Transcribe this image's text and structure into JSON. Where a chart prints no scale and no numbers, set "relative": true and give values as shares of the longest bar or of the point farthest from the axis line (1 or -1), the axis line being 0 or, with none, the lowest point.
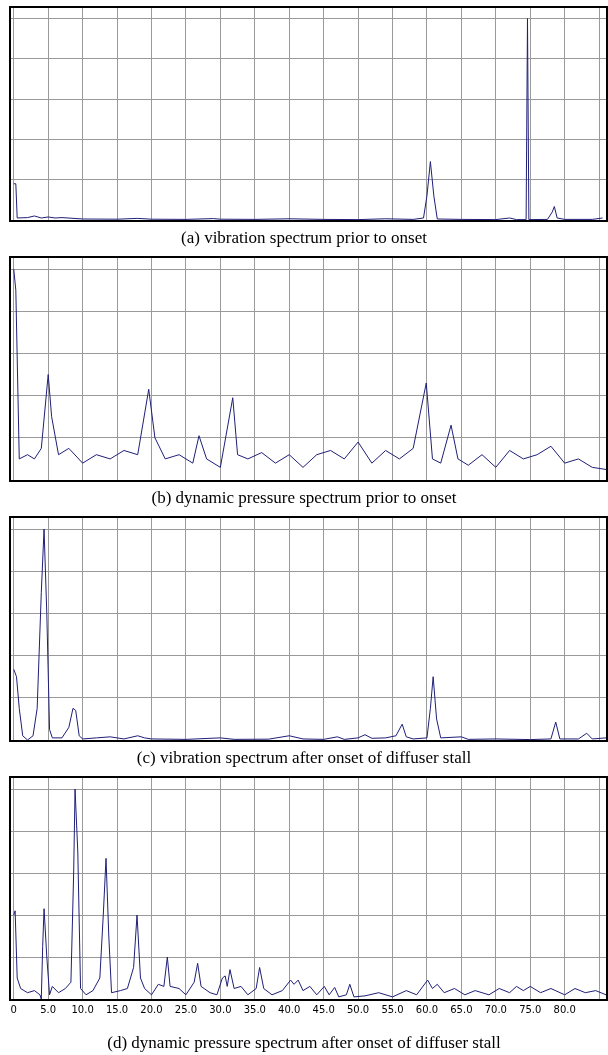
{
  "chart_data": [
    {
      "type": "line",
      "title": "(a) vibration spectrum prior to onset",
      "relative": true,
      "grid": true,
      "tick_labels": false,
      "xlim": [
        -0.4,
        86
      ],
      "xticks": [
        0,
        5,
        10,
        15,
        20,
        25,
        30,
        35,
        40,
        45,
        50,
        55,
        60,
        65,
        70,
        75,
        80,
        85
      ],
      "series": [
        {
          "color": "#1f1f78",
          "x": [
            0,
            0.3,
            0.5,
            2,
            3,
            4,
            5,
            6,
            7,
            10,
            15,
            18,
            20,
            25,
            29,
            30,
            35,
            40,
            45,
            50,
            54,
            58,
            59.5,
            60,
            60.5,
            61,
            61.5,
            65,
            70,
            72,
            73,
            74.4,
            74.6,
            74.8,
            77.5,
            78.2,
            78.5,
            78.9,
            80,
            84,
            85.5
          ],
          "values": [
            0.18,
            0.18,
            0.01,
            0.012,
            0.02,
            0.01,
            0.015,
            0.01,
            0.012,
            0.005,
            0.004,
            0.008,
            0.004,
            0.003,
            0.007,
            0.004,
            0.003,
            0.006,
            0.003,
            0.002,
            0.006,
            0.003,
            0.01,
            0.12,
            0.29,
            0.12,
            0.005,
            0.003,
            0.002,
            0.01,
            0.002,
            0.002,
            1,
            0.002,
            0.003,
            0.04,
            0.067,
            0.01,
            0.003,
            0.003,
            0.01
          ]
        }
      ]
    },
    {
      "type": "line",
      "title": "(b) dynamic pressure spectrum prior to onset",
      "relative": true,
      "grid": true,
      "tick_labels": false,
      "xlim": [
        -0.4,
        86
      ],
      "xticks": [
        0,
        5,
        10,
        15,
        20,
        25,
        30,
        35,
        40,
        45,
        50,
        55,
        60,
        65,
        70,
        75,
        80,
        85
      ],
      "series": [
        {
          "color": "#1f1f78",
          "x": [
            0,
            0.3,
            0.8,
            2,
            3,
            4,
            5,
            5.5,
            6.5,
            8,
            10,
            12,
            14,
            16,
            18,
            19.6,
            20.5,
            22,
            24,
            26,
            26.9,
            28,
            30,
            31.8,
            32.5,
            34,
            36,
            38,
            40,
            42,
            44,
            46,
            48,
            50,
            52,
            54,
            56,
            58,
            59.9,
            60.8,
            62,
            63.5,
            64.5,
            66,
            68,
            70,
            72,
            74,
            76,
            78,
            80,
            82,
            84,
            86
          ],
          "values": [
            1,
            0.9,
            0.1,
            0.12,
            0.1,
            0.15,
            0.5,
            0.3,
            0.12,
            0.15,
            0.08,
            0.12,
            0.1,
            0.14,
            0.12,
            0.43,
            0.2,
            0.1,
            0.12,
            0.08,
            0.21,
            0.1,
            0.06,
            0.39,
            0.12,
            0.1,
            0.13,
            0.08,
            0.12,
            0.06,
            0.12,
            0.14,
            0.1,
            0.18,
            0.08,
            0.14,
            0.1,
            0.15,
            0.46,
            0.1,
            0.08,
            0.26,
            0.1,
            0.07,
            0.12,
            0.06,
            0.14,
            0.1,
            0.12,
            0.16,
            0.08,
            0.1,
            0.06,
            0.05
          ]
        }
      ]
    },
    {
      "type": "line",
      "title": "(c) vibration spectrum after onset of diffuser stall",
      "relative": true,
      "grid": true,
      "tick_labels": false,
      "xlim": [
        -0.4,
        86
      ],
      "xticks": [
        0,
        5,
        10,
        15,
        20,
        25,
        30,
        35,
        40,
        45,
        50,
        55,
        60,
        65,
        70,
        75,
        80,
        85
      ],
      "series": [
        {
          "color": "#1f1f78",
          "x": [
            0,
            0.4,
            0.8,
            1.3,
            2,
            2.8,
            3.4,
            4,
            4.4,
            4.8,
            5.2,
            5.6,
            7,
            8,
            8.6,
            9,
            9.5,
            10,
            12,
            14,
            16,
            18,
            19,
            20,
            25,
            30,
            32,
            37,
            40,
            42,
            45,
            47,
            48,
            50,
            51,
            52,
            54,
            55.5,
            56.4,
            57,
            58,
            60,
            60.5,
            60.9,
            61.4,
            62,
            65,
            66,
            70,
            75,
            78,
            78.7,
            79.3,
            82,
            83.2,
            84,
            86
          ],
          "values": [
            0.335,
            0.3,
            0.15,
            0.02,
            0,
            0.02,
            0.15,
            0.7,
            1,
            0.6,
            0.05,
            0.01,
            0.01,
            0.06,
            0.15,
            0.14,
            0.02,
            0.005,
            0.01,
            0.015,
            0.005,
            0.02,
            0.01,
            0.005,
            0.003,
            0.01,
            0.003,
            0.004,
            0.02,
            0.005,
            0.003,
            0.015,
            0.003,
            0.01,
            0.025,
            0.008,
            0.01,
            0.02,
            0.075,
            0.015,
            0.005,
            0.01,
            0.15,
            0.3,
            0.1,
            0.01,
            0.015,
            0.003,
            0.005,
            0.002,
            0.005,
            0.085,
            0.005,
            0.005,
            0.032,
            0.005,
            0.01
          ]
        }
      ]
    },
    {
      "type": "line",
      "title": "(d) dynamic pressure spectrum after onset of diffuser stall",
      "relative": true,
      "grid": true,
      "tick_labels": "x",
      "xlim": [
        -0.4,
        86
      ],
      "xticks": [
        {
          "value": 0,
          "label": "0"
        },
        {
          "value": 5,
          "label": "5.0"
        },
        {
          "value": 10,
          "label": "10.0"
        },
        {
          "value": 15,
          "label": "15.0"
        },
        {
          "value": 20,
          "label": "20.0"
        },
        {
          "value": 25,
          "label": "25.0"
        },
        {
          "value": 30,
          "label": "30.0"
        },
        {
          "value": 35,
          "label": "35.0"
        },
        {
          "value": 40,
          "label": "40.0"
        },
        {
          "value": 45,
          "label": "45.0"
        },
        {
          "value": 50,
          "label": "50.0"
        },
        {
          "value": 55,
          "label": "55.0"
        },
        {
          "value": 60,
          "label": "60.0"
        },
        {
          "value": 65,
          "label": "65.0"
        },
        {
          "value": 70,
          "label": "70.0"
        },
        {
          "value": 75,
          "label": "75.0"
        },
        {
          "value": 80,
          "label": "80.0"
        },
        {
          "value": 85,
          "label": null
        }
      ],
      "series": [
        {
          "color": "#1f1f78",
          "x": [
            0,
            0.2,
            0.5,
            1,
            2,
            3,
            3.8,
            4,
            4.2,
            4.4,
            4.8,
            5.2,
            5.6,
            6.5,
            7.5,
            8.3,
            8.7,
            8.9,
            9.3,
            9.7,
            10.5,
            11.5,
            12.5,
            13,
            13.4,
            13.8,
            14.2,
            15.5,
            16.5,
            17.4,
            17.9,
            18.4,
            19,
            20,
            21,
            21.8,
            22.3,
            22.7,
            24,
            25,
            26.2,
            26.7,
            27.2,
            28.5,
            29.5,
            30.3,
            30.7,
            31,
            31.4,
            32,
            33,
            34,
            35.2,
            35.7,
            36.3,
            37.5,
            39,
            40.2,
            40.7,
            41.3,
            42,
            43,
            44,
            45.1,
            45.8,
            46.6,
            47.2,
            48.3,
            48.8,
            49.4,
            51,
            53,
            55,
            57,
            58.5,
            60.1,
            60.8,
            61.5,
            62.5,
            64,
            65.5,
            67,
            69,
            70.5,
            72,
            73,
            74,
            75,
            76.5,
            78,
            80,
            81.5,
            83,
            84.5,
            86
          ],
          "values": [
            0.4,
            0.42,
            0.1,
            0.05,
            0.03,
            0.04,
            0.02,
            0,
            0.25,
            0.43,
            0.2,
            0.02,
            0.06,
            0.03,
            0.05,
            0.08,
            0.6,
            1,
            0.7,
            0.05,
            0.02,
            0.04,
            0.1,
            0.4,
            0.67,
            0.3,
            0.03,
            0.04,
            0.05,
            0.15,
            0.4,
            0.1,
            0.05,
            0.02,
            0.07,
            0.06,
            0.2,
            0.06,
            0.05,
            0.02,
            0.08,
            0.17,
            0.06,
            0.03,
            0.02,
            0.1,
            0.11,
            0.06,
            0.14,
            0.05,
            0.06,
            0.02,
            0.05,
            0.15,
            0.05,
            0.02,
            0.04,
            0.09,
            0.07,
            0.09,
            0.04,
            0.06,
            0.02,
            0.06,
            0.02,
            0.055,
            0.01,
            0.02,
            0.07,
            0.01,
            0.015,
            0.03,
            0.01,
            0.04,
            0.02,
            0.09,
            0.05,
            0.07,
            0.03,
            0.05,
            0.02,
            0.04,
            0.02,
            0.05,
            0.03,
            0.06,
            0.04,
            0.06,
            0.03,
            0.05,
            0.02,
            0.05,
            0.03,
            0.04,
            0.02
          ]
        }
      ]
    }
  ]
}
